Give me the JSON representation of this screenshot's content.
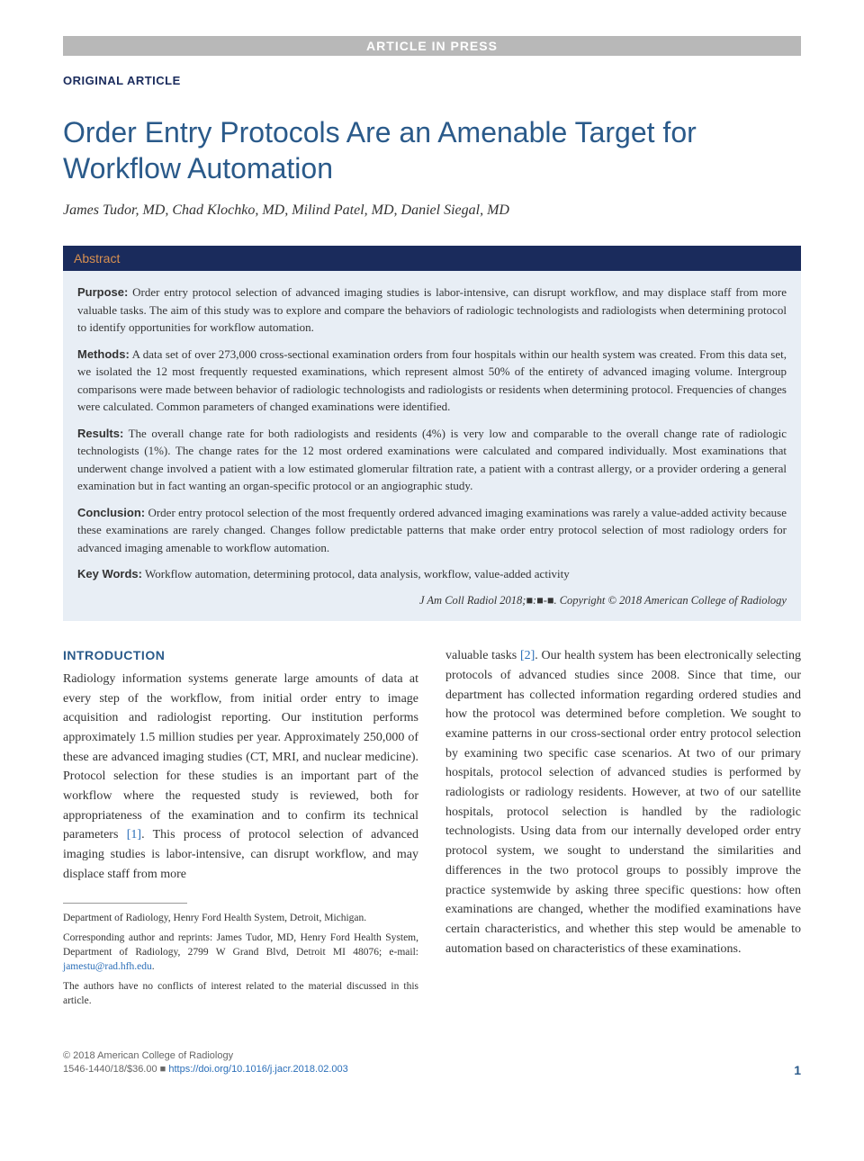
{
  "banner": "ARTICLE IN PRESS",
  "article_type": "ORIGINAL ARTICLE",
  "title": "Order Entry Protocols Are an Amenable Target for Workflow Automation",
  "authors": "James Tudor, MD, Chad Klochko, MD, Milind Patel, MD, Daniel Siegal, MD",
  "abstract": {
    "header": "Abstract",
    "purpose": {
      "label": "Purpose:",
      "text": "Order entry protocol selection of advanced imaging studies is labor-intensive, can disrupt workflow, and may displace staff from more valuable tasks. The aim of this study was to explore and compare the behaviors of radiologic technologists and radiologists when determining protocol to identify opportunities for workflow automation."
    },
    "methods": {
      "label": "Methods:",
      "text": "A data set of over 273,000 cross-sectional examination orders from four hospitals within our health system was created. From this data set, we isolated the 12 most frequently requested examinations, which represent almost 50% of the entirety of advanced imaging volume. Intergroup comparisons were made between behavior of radiologic technologists and radiologists or residents when determining protocol. Frequencies of changes were calculated. Common parameters of changed examinations were identified."
    },
    "results": {
      "label": "Results:",
      "text": "The overall change rate for both radiologists and residents (4%) is very low and comparable to the overall change rate of radiologic technologists (1%). The change rates for the 12 most ordered examinations were calculated and compared individually. Most examinations that underwent change involved a patient with a low estimated glomerular filtration rate, a patient with a contrast allergy, or a provider ordering a general examination but in fact wanting an organ-specific protocol or an angiographic study."
    },
    "conclusion": {
      "label": "Conclusion:",
      "text": "Order entry protocol selection of the most frequently ordered advanced imaging examinations was rarely a value-added activity because these examinations are rarely changed. Changes follow predictable patterns that make order entry protocol selection of most radiology orders for advanced imaging amenable to workflow automation."
    },
    "keywords": {
      "label": "Key Words:",
      "text": "Workflow automation, determining protocol, data analysis, workflow, value-added activity"
    },
    "citation": "J Am Coll Radiol 2018;■:■-■. Copyright © 2018 American College of Radiology"
  },
  "intro": {
    "heading": "INTRODUCTION",
    "col1_p1": "Radiology information systems generate large amounts of data at every step of the workflow, from initial order entry to image acquisition and radiologist reporting. Our institution performs approximately 1.5 million studies per year. Approximately 250,000 of these are advanced imaging studies (CT, MRI, and nuclear medicine). Protocol selection for these studies is an important part of the workflow where the requested study is reviewed, both for appropriateness of the examination and to confirm its technical parameters ",
    "ref1": "[1]",
    "col1_p1b": ". This process of protocol selection of advanced imaging studies is labor-intensive, can disrupt workflow, and may displace staff from more",
    "col2_p1a": "valuable tasks ",
    "ref2": "[2]",
    "col2_p1b": ". Our health system has been electronically selecting protocols of advanced studies since 2008. Since that time, our department has collected information regarding ordered studies and how the protocol was determined before completion. We sought to examine patterns in our cross-sectional order entry protocol selection by examining two specific case scenarios. At two of our primary hospitals, protocol selection of advanced studies is performed by radiologists or radiology residents. However, at two of our satellite hospitals, protocol selection is handled by the radiologic technologists. Using data from our internally developed order entry protocol system, we sought to understand the similarities and differences in the two protocol groups to possibly improve the practice systemwide by asking three specific questions: how often examinations are changed, whether the modified examinations have certain characteristics, and whether this step would be amenable to automation based on characteristics of these examinations."
  },
  "footnotes": {
    "affiliation": "Department of Radiology, Henry Ford Health System, Detroit, Michigan.",
    "correspondence": "Corresponding author and reprints: James Tudor, MD, Henry Ford Health System, Department of Radiology, 2799 W Grand Blvd, Detroit MI 48076; e-mail: ",
    "email": "jamestu@rad.hfh.edu",
    "period": ".",
    "conflicts": "The authors have no conflicts of interest related to the material discussed in this article."
  },
  "footer": {
    "copyright": "© 2018 American College of Radiology",
    "issn": "1546-1440/18/$36.00 ■ ",
    "doi": "https://doi.org/10.1016/j.jacr.2018.02.003",
    "page": "1"
  },
  "colors": {
    "banner_bg": "#b8b8b8",
    "navy": "#1a2b5c",
    "title_blue": "#2a5a8a",
    "abstract_orange": "#d89050",
    "abstract_bg": "#e8eef5",
    "link_blue": "#2a6eb8"
  }
}
